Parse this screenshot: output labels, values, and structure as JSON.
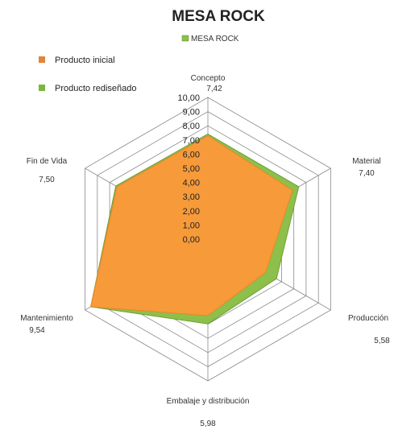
{
  "chart_data": {
    "type": "radar",
    "title": "MESA ROCK",
    "legend_label": "MESA ROCK",
    "categories": [
      "Concepto",
      "Material",
      "Producción",
      "Embalaje y distribución",
      "Mantenimiento",
      "Fin de Vida"
    ],
    "value_labels": [
      "7,42",
      "7,40",
      "5,58",
      "5,98",
      "9,54",
      "7,50"
    ],
    "ticks": [
      "0,00",
      "1,00",
      "2,00",
      "3,00",
      "4,00",
      "5,00",
      "6,00",
      "7,00",
      "8,00",
      "9,00",
      "10,00"
    ],
    "range": [
      0,
      10
    ],
    "series": [
      {
        "name": "Producto rediseñado",
        "color": "#8cc04b",
        "values": [
          7.42,
          7.4,
          5.58,
          5.98,
          9.54,
          7.5
        ]
      },
      {
        "name": "Producto inicial",
        "color": "#f79a3a",
        "values": [
          7.3,
          6.9,
          4.7,
          5.4,
          9.54,
          7.4
        ]
      }
    ],
    "side_legend": [
      {
        "label": "Producto inicial",
        "color": "#e0853a"
      },
      {
        "label": "Producto rediseñado",
        "color": "#7ab63f"
      }
    ]
  }
}
